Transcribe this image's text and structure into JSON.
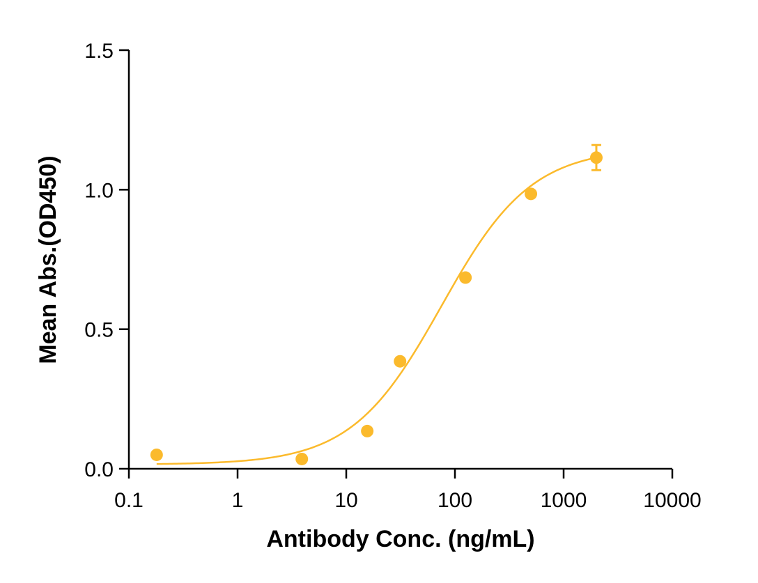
{
  "chart_data": {
    "type": "scatter",
    "xlabel": "Antibody Conc. (ng/mL)",
    "ylabel": "Mean Abs.(OD450)",
    "xscale": "log",
    "xlim": [
      0.1,
      10000
    ],
    "ylim": [
      0,
      1.5
    ],
    "xticks": [
      0.1,
      1,
      10,
      100,
      1000,
      10000
    ],
    "xtick_labels": [
      "0.1",
      "1",
      "10",
      "100",
      "1000",
      "10000"
    ],
    "yticks": [
      0,
      0.5,
      1.0,
      1.5
    ],
    "ytick_labels": [
      "0.0",
      "0.5",
      "1.0",
      "1.5"
    ],
    "grid": false,
    "color": "#FBBA2C",
    "points": [
      {
        "x": 0.18,
        "y": 0.05
      },
      {
        "x": 3.9,
        "y": 0.035
      },
      {
        "x": 15.6,
        "y": 0.135
      },
      {
        "x": 31.25,
        "y": 0.385
      },
      {
        "x": 125,
        "y": 0.685
      },
      {
        "x": 500,
        "y": 0.985
      },
      {
        "x": 2000,
        "y": 1.115,
        "error": 0.045
      }
    ],
    "fit": {
      "model": "4PL",
      "bottom": 0.015,
      "top": 1.15,
      "ec50": 75,
      "hill": 1.05,
      "x_range": [
        0.18,
        2000
      ]
    }
  }
}
